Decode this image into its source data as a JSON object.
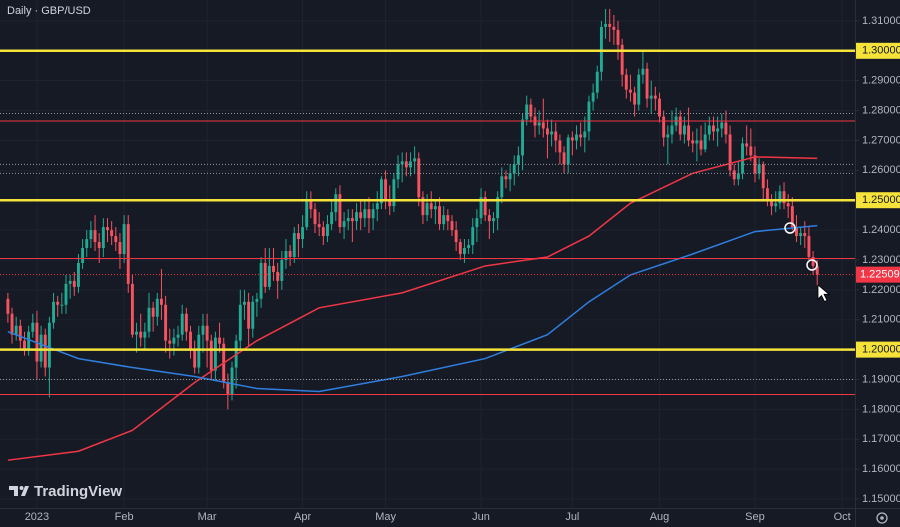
{
  "chart_data": {
    "type": "candlestick",
    "title": "Daily · GBP/USD",
    "logo": "TradingView",
    "up_color": "#22ab94",
    "down_color": "#f7525f",
    "grid": true,
    "xlim": [
      -1.9,
      204.1
    ],
    "xticks": [
      {
        "value": 7,
        "label": "2023"
      },
      {
        "value": 28,
        "label": "Feb"
      },
      {
        "value": 48,
        "label": "Mar"
      },
      {
        "value": 71,
        "label": "Apr"
      },
      {
        "value": 91,
        "label": "May"
      },
      {
        "value": 114,
        "label": "Jun"
      },
      {
        "value": 136,
        "label": "Jul"
      },
      {
        "value": 157,
        "label": "Aug"
      },
      {
        "value": 180,
        "label": "Sep"
      },
      {
        "value": 201,
        "label": "Oct"
      }
    ],
    "ylim": [
      1.147,
      1.317
    ],
    "yticks": [
      {
        "value": 1.15,
        "label": "1.15000"
      },
      {
        "value": 1.16,
        "label": "1.16000"
      },
      {
        "value": 1.17,
        "label": "1.17000"
      },
      {
        "value": 1.18,
        "label": "1.18000"
      },
      {
        "value": 1.19,
        "label": "1.19000"
      },
      {
        "value": 1.2,
        "label": "1.20000"
      },
      {
        "value": 1.21,
        "label": "1.21000"
      },
      {
        "value": 1.22,
        "label": "1.22000"
      },
      {
        "value": 1.23,
        "label": "1.23000"
      },
      {
        "value": 1.24,
        "label": "1.24000"
      },
      {
        "value": 1.25,
        "label": "1.25000"
      },
      {
        "value": 1.26,
        "label": "1.26000"
      },
      {
        "value": 1.27,
        "label": "1.27000"
      },
      {
        "value": 1.28,
        "label": "1.28000"
      },
      {
        "value": 1.29,
        "label": "1.29000"
      },
      {
        "value": 1.3,
        "label": "1.30000"
      },
      {
        "value": 1.31,
        "label": "1.31000"
      }
    ],
    "open": [
      1.217,
      1.212,
      1.205,
      1.208,
      1.203,
      1.2,
      1.206,
      1.209,
      1.196,
      1.205,
      1.194,
      1.209,
      1.216,
      1.215,
      1.215,
      1.222,
      1.223,
      1.221,
      1.229,
      1.234,
      1.237,
      1.24,
      1.236,
      1.234,
      1.241,
      1.24,
      1.238,
      1.236,
      1.232,
      1.242,
      1.222,
      1.205,
      1.206,
      1.204,
      1.206,
      1.214,
      1.211,
      1.217,
      1.215,
      1.203,
      1.202,
      1.204,
      1.205,
      1.212,
      1.206,
      1.2,
      1.194,
      1.205,
      1.208,
      1.203,
      1.193,
      1.204,
      1.202,
      1.189,
      1.185,
      1.194,
      1.203,
      1.215,
      1.216,
      1.207,
      1.216,
      1.217,
      1.229,
      1.221,
      1.228,
      1.226,
      1.223,
      1.23,
      1.233,
      1.231,
      1.239,
      1.237,
      1.241,
      1.25,
      1.247,
      1.242,
      1.241,
      1.238,
      1.242,
      1.246,
      1.252,
      1.241,
      1.243,
      1.244,
      1.243,
      1.246,
      1.244,
      1.247,
      1.244,
      1.247,
      1.249,
      1.257,
      1.25,
      1.248,
      1.257,
      1.262,
      1.263,
      1.261,
      1.263,
      1.264,
      1.251,
      1.245,
      1.249,
      1.247,
      1.248,
      1.242,
      1.245,
      1.243,
      1.24,
      1.236,
      1.232,
      1.234,
      1.235,
      1.241,
      1.244,
      1.251,
      1.245,
      1.243,
      1.244,
      1.251,
      1.258,
      1.257,
      1.259,
      1.262,
      1.265,
      1.277,
      1.282,
      1.278,
      1.275,
      1.276,
      1.274,
      1.272,
      1.273,
      1.27,
      1.266,
      1.262,
      1.271,
      1.27,
      1.272,
      1.271,
      1.273,
      1.283,
      1.286,
      1.293,
      1.308,
      1.309,
      1.308,
      1.307,
      1.302,
      1.292,
      1.287,
      1.286,
      1.282,
      1.292,
      1.294,
      1.284,
      1.285,
      1.284,
      1.278,
      1.271,
      1.272,
      1.275,
      1.278,
      1.272,
      1.275,
      1.27,
      1.269,
      1.27,
      1.267,
      1.272,
      1.275,
      1.273,
      1.274,
      1.276,
      1.272,
      1.26,
      1.257,
      1.259,
      1.269,
      1.268,
      1.265,
      1.259,
      1.262,
      1.254,
      1.25,
      1.248,
      1.249,
      1.253,
      1.249,
      1.248,
      1.241,
      1.238,
      1.239,
      1.238,
      1.231,
      1.228
    ],
    "high": [
      1.219,
      1.214,
      1.211,
      1.21,
      1.206,
      1.208,
      1.212,
      1.213,
      1.208,
      1.207,
      1.211,
      1.219,
      1.218,
      1.219,
      1.225,
      1.225,
      1.226,
      1.232,
      1.237,
      1.24,
      1.243,
      1.245,
      1.239,
      1.244,
      1.244,
      1.243,
      1.241,
      1.239,
      1.245,
      1.245,
      1.225,
      1.209,
      1.212,
      1.209,
      1.219,
      1.216,
      1.219,
      1.227,
      1.218,
      1.207,
      1.207,
      1.208,
      1.215,
      1.214,
      1.208,
      1.203,
      1.208,
      1.212,
      1.212,
      1.205,
      1.206,
      1.209,
      1.204,
      1.192,
      1.196,
      1.205,
      1.22,
      1.22,
      1.219,
      1.218,
      1.219,
      1.231,
      1.234,
      1.234,
      1.234,
      1.229,
      1.233,
      1.237,
      1.235,
      1.241,
      1.242,
      1.245,
      1.253,
      1.253,
      1.249,
      1.246,
      1.243,
      1.245,
      1.25,
      1.254,
      1.255,
      1.246,
      1.247,
      1.247,
      1.249,
      1.25,
      1.25,
      1.251,
      1.249,
      1.253,
      1.258,
      1.26,
      1.255,
      1.259,
      1.265,
      1.266,
      1.266,
      1.266,
      1.268,
      1.266,
      1.253,
      1.252,
      1.253,
      1.25,
      1.251,
      1.248,
      1.247,
      1.245,
      1.243,
      1.237,
      1.237,
      1.237,
      1.244,
      1.247,
      1.254,
      1.253,
      1.247,
      1.246,
      1.253,
      1.261,
      1.26,
      1.262,
      1.265,
      1.268,
      1.279,
      1.285,
      1.284,
      1.281,
      1.28,
      1.284,
      1.277,
      1.277,
      1.276,
      1.272,
      1.268,
      1.272,
      1.273,
      1.275,
      1.276,
      1.278,
      1.285,
      1.289,
      1.295,
      1.31,
      1.314,
      1.314,
      1.312,
      1.31,
      1.304,
      1.294,
      1.292,
      1.288,
      1.294,
      1.3,
      1.296,
      1.29,
      1.288,
      1.286,
      1.28,
      1.275,
      1.28,
      1.281,
      1.28,
      1.278,
      1.281,
      1.273,
      1.274,
      1.275,
      1.276,
      1.278,
      1.278,
      1.278,
      1.279,
      1.28,
      1.275,
      1.262,
      1.263,
      1.271,
      1.275,
      1.274,
      1.268,
      1.264,
      1.263,
      1.257,
      1.252,
      1.253,
      1.255,
      1.256,
      1.252,
      1.251,
      1.245,
      1.241,
      1.243,
      1.241,
      1.233,
      1.23
    ],
    "low": [
      1.209,
      1.202,
      1.203,
      1.2,
      1.198,
      1.198,
      1.204,
      1.19,
      1.194,
      1.191,
      1.184,
      1.207,
      1.211,
      1.212,
      1.212,
      1.217,
      1.218,
      1.219,
      1.227,
      1.231,
      1.234,
      1.233,
      1.229,
      1.231,
      1.236,
      1.235,
      1.233,
      1.227,
      1.229,
      1.219,
      1.204,
      1.199,
      1.201,
      1.2,
      1.204,
      1.206,
      1.208,
      1.21,
      1.199,
      1.197,
      1.198,
      1.201,
      1.203,
      1.203,
      1.197,
      1.192,
      1.192,
      1.199,
      1.194,
      1.19,
      1.19,
      1.199,
      1.187,
      1.18,
      1.183,
      1.187,
      1.2,
      1.21,
      1.201,
      1.204,
      1.211,
      1.214,
      1.219,
      1.22,
      1.223,
      1.217,
      1.22,
      1.227,
      1.228,
      1.229,
      1.231,
      1.234,
      1.24,
      1.244,
      1.239,
      1.238,
      1.235,
      1.236,
      1.24,
      1.243,
      1.239,
      1.237,
      1.24,
      1.236,
      1.24,
      1.24,
      1.241,
      1.239,
      1.24,
      1.243,
      1.247,
      1.247,
      1.245,
      1.246,
      1.254,
      1.256,
      1.258,
      1.258,
      1.259,
      1.248,
      1.242,
      1.243,
      1.244,
      1.242,
      1.24,
      1.24,
      1.24,
      1.238,
      1.233,
      1.23,
      1.229,
      1.232,
      1.232,
      1.236,
      1.242,
      1.243,
      1.237,
      1.239,
      1.24,
      1.249,
      1.254,
      1.253,
      1.255,
      1.258,
      1.26,
      1.275,
      1.276,
      1.271,
      1.272,
      1.271,
      1.264,
      1.268,
      1.266,
      1.262,
      1.259,
      1.259,
      1.265,
      1.267,
      1.268,
      1.266,
      1.27,
      1.28,
      1.284,
      1.29,
      1.304,
      1.303,
      1.302,
      1.297,
      1.288,
      1.284,
      1.283,
      1.278,
      1.28,
      1.289,
      1.281,
      1.279,
      1.28,
      1.276,
      1.268,
      1.262,
      1.269,
      1.273,
      1.27,
      1.269,
      1.268,
      1.266,
      1.263,
      1.265,
      1.266,
      1.27,
      1.27,
      1.268,
      1.271,
      1.269,
      1.258,
      1.255,
      1.255,
      1.257,
      1.265,
      1.263,
      1.256,
      1.257,
      1.25,
      1.248,
      1.245,
      1.246,
      1.247,
      1.247,
      1.244,
      1.24,
      1.236,
      1.235,
      1.234,
      1.23,
      1.225,
      1.2215
    ],
    "close": [
      1.212,
      1.205,
      1.208,
      1.203,
      1.2,
      1.206,
      1.209,
      1.196,
      1.205,
      1.194,
      1.209,
      1.216,
      1.215,
      1.215,
      1.222,
      1.223,
      1.221,
      1.229,
      1.234,
      1.237,
      1.24,
      1.236,
      1.234,
      1.241,
      1.24,
      1.238,
      1.236,
      1.232,
      1.242,
      1.222,
      1.205,
      1.206,
      1.204,
      1.206,
      1.214,
      1.211,
      1.217,
      1.215,
      1.203,
      1.202,
      1.204,
      1.205,
      1.212,
      1.206,
      1.2,
      1.194,
      1.205,
      1.208,
      1.203,
      1.193,
      1.204,
      1.202,
      1.189,
      1.185,
      1.194,
      1.203,
      1.215,
      1.216,
      1.207,
      1.216,
      1.217,
      1.229,
      1.221,
      1.228,
      1.226,
      1.223,
      1.23,
      1.233,
      1.231,
      1.239,
      1.237,
      1.241,
      1.25,
      1.247,
      1.242,
      1.241,
      1.238,
      1.242,
      1.246,
      1.252,
      1.241,
      1.243,
      1.244,
      1.243,
      1.246,
      1.244,
      1.247,
      1.244,
      1.247,
      1.249,
      1.257,
      1.25,
      1.248,
      1.257,
      1.262,
      1.263,
      1.261,
      1.263,
      1.264,
      1.251,
      1.245,
      1.249,
      1.247,
      1.248,
      1.242,
      1.245,
      1.243,
      1.24,
      1.236,
      1.232,
      1.234,
      1.235,
      1.241,
      1.244,
      1.251,
      1.245,
      1.243,
      1.244,
      1.251,
      1.258,
      1.257,
      1.259,
      1.262,
      1.265,
      1.277,
      1.282,
      1.278,
      1.275,
      1.276,
      1.274,
      1.272,
      1.273,
      1.27,
      1.266,
      1.262,
      1.271,
      1.27,
      1.272,
      1.271,
      1.273,
      1.283,
      1.286,
      1.293,
      1.308,
      1.309,
      1.308,
      1.307,
      1.302,
      1.292,
      1.287,
      1.286,
      1.282,
      1.292,
      1.294,
      1.284,
      1.285,
      1.284,
      1.278,
      1.271,
      1.272,
      1.275,
      1.278,
      1.272,
      1.275,
      1.27,
      1.269,
      1.27,
      1.267,
      1.272,
      1.275,
      1.273,
      1.274,
      1.276,
      1.272,
      1.26,
      1.257,
      1.259,
      1.269,
      1.268,
      1.265,
      1.259,
      1.262,
      1.254,
      1.25,
      1.248,
      1.249,
      1.253,
      1.249,
      1.248,
      1.241,
      1.238,
      1.239,
      1.238,
      1.231,
      1.228,
      1.22509
    ],
    "moving_averages": [
      {
        "color": "#f23645",
        "x": [
          0,
          17,
          30,
          45,
          60,
          75,
          95,
          115,
          130,
          140,
          150,
          165,
          180,
          195
        ],
        "values": [
          1.163,
          1.166,
          1.173,
          1.189,
          1.203,
          1.214,
          1.219,
          1.228,
          1.231,
          1.238,
          1.249,
          1.259,
          1.2645,
          1.264
        ]
      },
      {
        "color": "#2f7fe0",
        "x": [
          0,
          17,
          30,
          45,
          60,
          75,
          95,
          115,
          130,
          140,
          150,
          165,
          180,
          195
        ],
        "values": [
          1.206,
          1.197,
          1.194,
          1.191,
          1.187,
          1.186,
          1.191,
          1.197,
          1.205,
          1.216,
          1.225,
          1.232,
          1.2395,
          1.2415
        ]
      }
    ],
    "levels": [
      {
        "value": 1.3,
        "color": "#f5e33a",
        "style": "thick"
      },
      {
        "value": 1.25,
        "color": "#f5e33a",
        "style": "thick"
      },
      {
        "value": 1.2,
        "color": "#f5e33a",
        "style": "thick"
      },
      {
        "value": 1.2765,
        "color": "#f23645",
        "style": "thin"
      },
      {
        "value": 1.2305,
        "color": "#f23645",
        "style": "thin"
      },
      {
        "value": 1.185,
        "color": "#f23645",
        "style": "thin"
      },
      {
        "value": 1.279,
        "color": "#9598a1",
        "style": "dotted"
      },
      {
        "value": 1.262,
        "color": "#9598a1",
        "style": "dotted"
      },
      {
        "value": 1.259,
        "color": "#9598a1",
        "style": "dotted"
      },
      {
        "value": 1.19,
        "color": "#9598a1",
        "style": "dotted"
      }
    ]
  }
}
